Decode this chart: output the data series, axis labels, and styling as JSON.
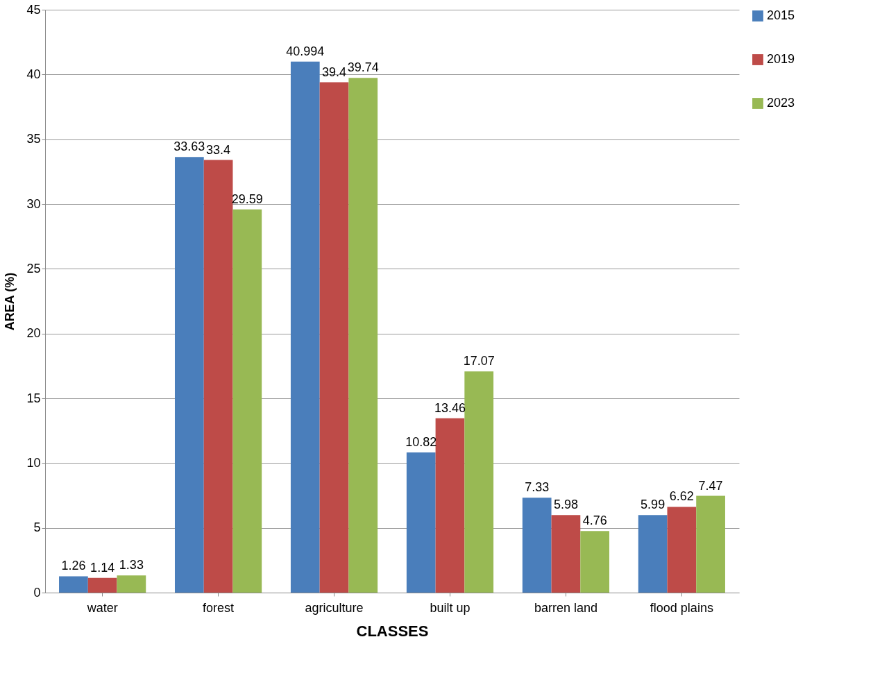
{
  "chart_data": {
    "type": "bar",
    "xlabel": "CLASSES",
    "ylabel": "AREA (%)",
    "categories": [
      "water",
      "forest",
      "agriculture",
      "built up",
      "barren land",
      "flood plains"
    ],
    "series": [
      {
        "name": "2015",
        "color": "#4a7ebb",
        "values": [
          1.26,
          33.63,
          40.994,
          10.82,
          7.33,
          5.99
        ]
      },
      {
        "name": "2019",
        "color": "#be4b48",
        "values": [
          1.14,
          33.4,
          39.4,
          13.46,
          5.98,
          6.62
        ]
      },
      {
        "name": "2023",
        "color": "#98b954",
        "values": [
          1.33,
          29.59,
          39.74,
          17.07,
          4.76,
          7.47
        ]
      }
    ],
    "ylim": [
      0,
      45
    ],
    "yticks": [
      0,
      5,
      10,
      15,
      20,
      25,
      30,
      35,
      40,
      45
    ],
    "grid": "y",
    "legend": "top right",
    "data_labels": true
  }
}
